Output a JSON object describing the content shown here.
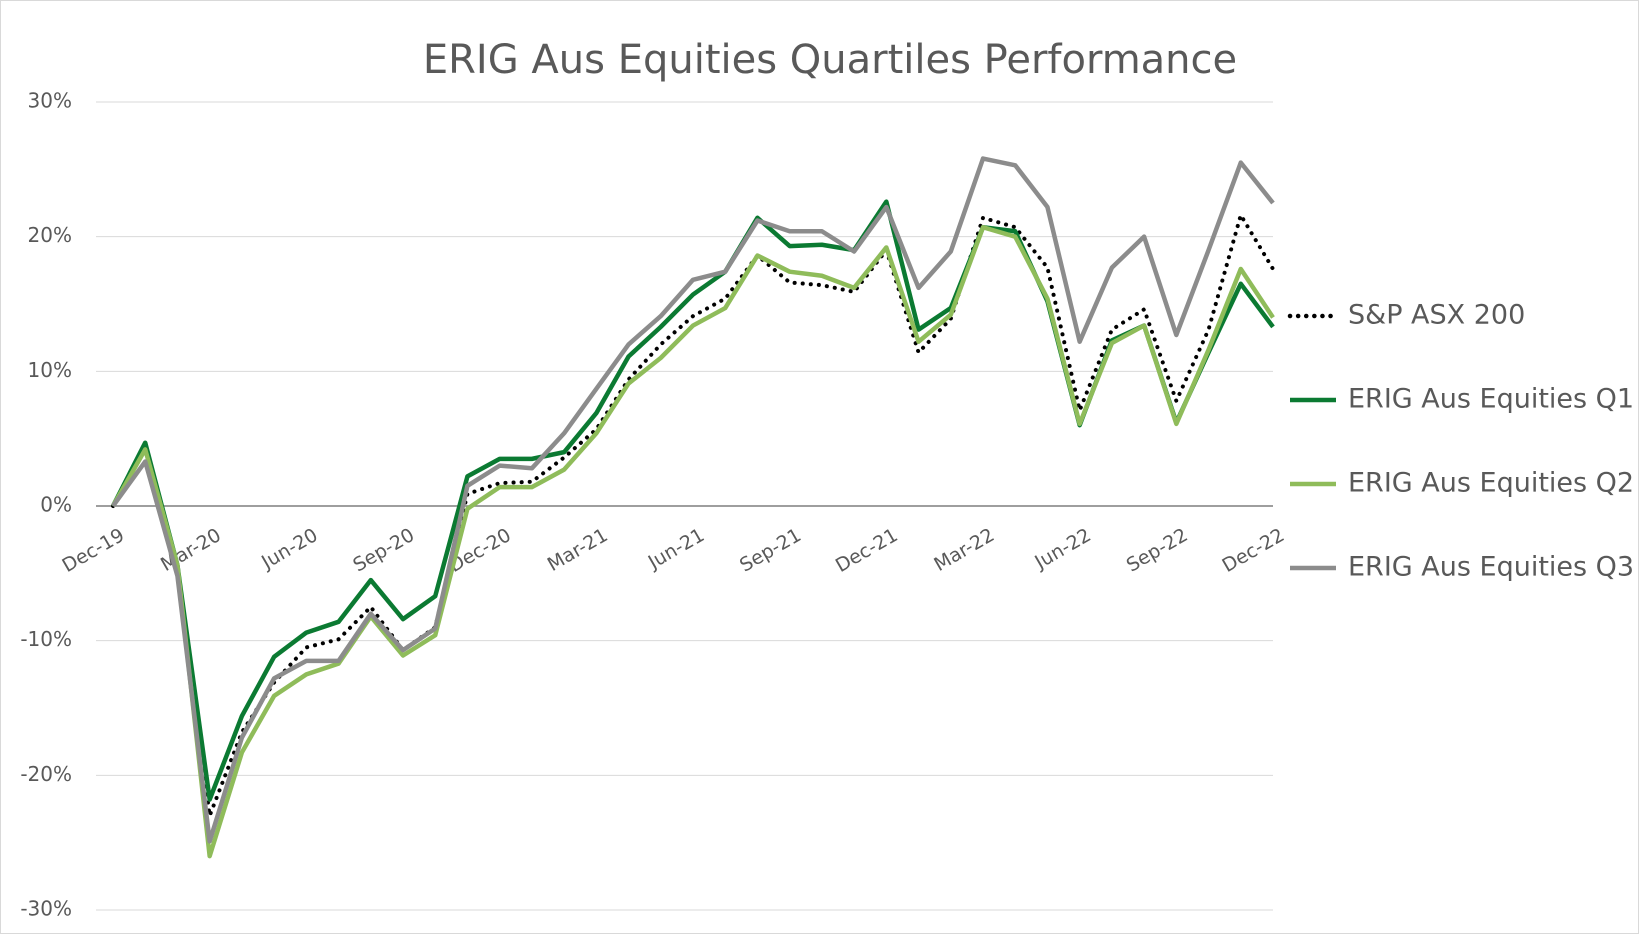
{
  "chart_data": {
    "type": "line",
    "title": "ERIG Aus Equities Quartiles Performance",
    "categories": [
      "Dec-19",
      null,
      null,
      "Mar-20",
      null,
      null,
      "Jun-20",
      null,
      null,
      "Sep-20",
      null,
      null,
      "Dec-20",
      null,
      null,
      "Mar-21",
      null,
      null,
      "Jun-21",
      null,
      null,
      "Sep-21",
      null,
      null,
      "Dec-21",
      null,
      null,
      "Mar-22",
      null,
      null,
      "Jun-22",
      null,
      null,
      "Sep-22",
      null,
      null,
      "Dec-22"
    ],
    "series": [
      {
        "name": "S&P ASX 200",
        "color": "#000000",
        "line_style": "dotted",
        "values": [
          0,
          4.4,
          -4.7,
          -23.0,
          -16.8,
          -13.1,
          -10.5,
          -9.9,
          -7.5,
          -10.7,
          -9.0,
          0.9,
          1.7,
          1.8,
          3.6,
          5.7,
          9.4,
          12.0,
          14.1,
          15.4,
          18.6,
          16.6,
          16.4,
          15.9,
          19.0,
          11.4,
          13.9,
          21.4,
          20.7,
          17.7,
          7.1,
          13.1,
          14.6,
          7.8,
          13.1,
          21.6,
          17.6
        ]
      },
      {
        "name": "ERIG Aus Equities Q1",
        "color": "#0b7a32",
        "line_style": "solid",
        "values": [
          0,
          4.7,
          -4.4,
          -21.8,
          -15.6,
          -11.2,
          -9.4,
          -8.6,
          -5.5,
          -8.4,
          -6.7,
          2.2,
          3.5,
          3.5,
          4.0,
          6.9,
          11.1,
          13.3,
          15.7,
          17.4,
          21.4,
          19.3,
          19.4,
          19.0,
          22.6,
          13.1,
          14.7,
          20.7,
          20.4,
          15.2,
          6.0,
          12.3,
          13.4,
          6.2,
          11.4,
          16.5,
          13.3
        ]
      },
      {
        "name": "ERIG Aus Equities Q2",
        "color": "#8fbc5a",
        "line_style": "solid",
        "values": [
          0,
          4.2,
          -4.4,
          -26.0,
          -18.3,
          -14.1,
          -12.5,
          -11.7,
          -8.2,
          -11.1,
          -9.6,
          -0.2,
          1.4,
          1.4,
          2.7,
          5.4,
          9.1,
          11.0,
          13.4,
          14.7,
          18.6,
          17.4,
          17.1,
          16.2,
          19.2,
          12.2,
          14.2,
          20.7,
          20.0,
          15.4,
          6.1,
          12.1,
          13.4,
          6.1,
          11.6,
          17.6,
          14.0
        ]
      },
      {
        "name": "ERIG Aus Equities Q3",
        "color": "#8c8c8c",
        "line_style": "solid",
        "values": [
          0,
          3.3,
          -5.2,
          -24.9,
          -17.2,
          -12.8,
          -11.5,
          -11.5,
          -8.0,
          -10.7,
          -9.1,
          1.5,
          3.0,
          2.8,
          5.4,
          8.7,
          12.0,
          14.1,
          16.8,
          17.4,
          21.2,
          20.4,
          20.4,
          18.9,
          22.2,
          16.2,
          18.9,
          25.8,
          25.3,
          22.2,
          12.2,
          17.7,
          20.0,
          12.7,
          19.0,
          25.5,
          22.5
        ]
      }
    ],
    "ylim": [
      -30,
      30
    ],
    "yticks": [
      {
        "value": -30,
        "label": "-30%"
      },
      {
        "value": -20,
        "label": "-20%"
      },
      {
        "value": -10,
        "label": "-10%"
      },
      {
        "value": 0,
        "label": "0%"
      },
      {
        "value": 10,
        "label": "10%"
      },
      {
        "value": 20,
        "label": "20%"
      },
      {
        "value": 30,
        "label": "30%"
      }
    ],
    "grid": true,
    "legend": "right"
  }
}
